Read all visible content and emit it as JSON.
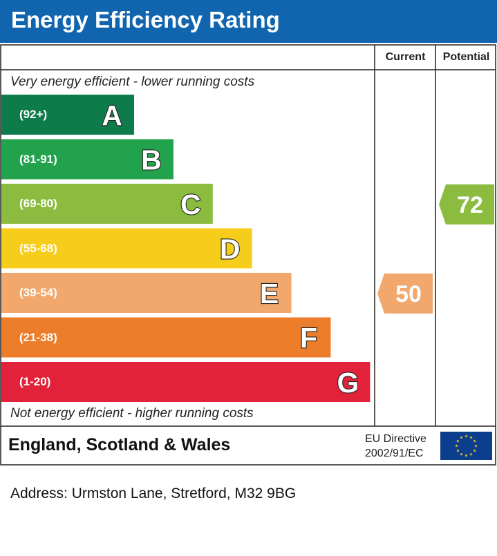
{
  "header": {
    "title": "Energy Efficiency Rating",
    "color": "#1165ae"
  },
  "columns": {
    "current": "Current",
    "potential": "Potential"
  },
  "notes": {
    "top": "Very energy efficient - lower running costs",
    "bottom": "Not energy efficient - higher running costs"
  },
  "chart_data": {
    "type": "bar",
    "categories": [
      "A",
      "B",
      "C",
      "D",
      "E",
      "F",
      "G"
    ],
    "bands": [
      {
        "letter": "A",
        "range": "(92+)",
        "min": 92,
        "max": 100,
        "color": "#0e7c4a"
      },
      {
        "letter": "B",
        "range": "(81-91)",
        "min": 81,
        "max": 91,
        "color": "#23a24d"
      },
      {
        "letter": "C",
        "range": "(69-80)",
        "min": 69,
        "max": 80,
        "color": "#8cbc3f"
      },
      {
        "letter": "D",
        "range": "(55-68)",
        "min": 55,
        "max": 68,
        "color": "#f7cd1b"
      },
      {
        "letter": "E",
        "range": "(39-54)",
        "min": 39,
        "max": 54,
        "color": "#f2a86d"
      },
      {
        "letter": "F",
        "range": "(21-38)",
        "min": 21,
        "max": 38,
        "color": "#ec7d2a"
      },
      {
        "letter": "G",
        "range": "(1-20)",
        "min": 1,
        "max": 20,
        "color": "#e2223b"
      }
    ],
    "current": {
      "value": 50,
      "band": "E",
      "color": "#f2a86d"
    },
    "potential": {
      "value": 72,
      "band": "C",
      "color": "#8cbc3f"
    }
  },
  "footer": {
    "region": "England, Scotland & Wales",
    "directive_line1": "EU Directive",
    "directive_line2": "2002/91/EC",
    "flag_color": "#0c3e8e",
    "star_color": "#f7cd1b"
  },
  "address": "Address: Urmston Lane, Stretford, M32 9BG"
}
